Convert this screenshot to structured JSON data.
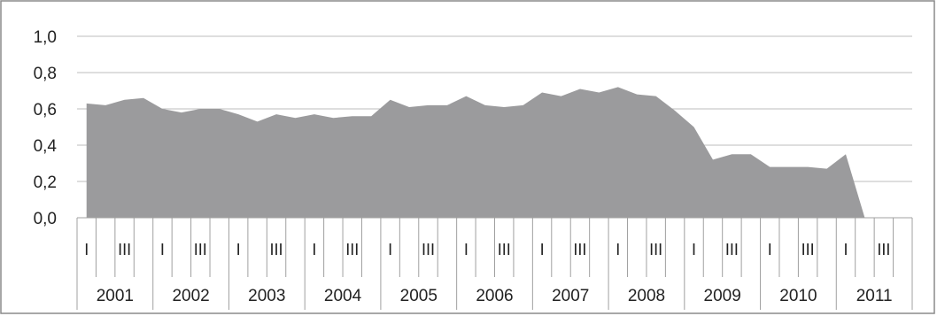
{
  "chart_data": {
    "type": "area",
    "title": "",
    "xlabel": "",
    "ylabel": "",
    "ylim": [
      0,
      1.0
    ],
    "y_ticks": [
      "0,0",
      "0,2",
      "0,4",
      "0,6",
      "0,8",
      "1,0"
    ],
    "y_tick_values": [
      0,
      0.2,
      0.4,
      0.6,
      0.8,
      1.0
    ],
    "grid": true,
    "legend": "none",
    "area_color": "#9b9b9d",
    "years": [
      "2001",
      "2002",
      "2003",
      "2004",
      "2005",
      "2006",
      "2007",
      "2008",
      "2009",
      "2010",
      "2011"
    ],
    "quarter_labels": [
      "I",
      "",
      "III",
      ""
    ],
    "x": [
      "2001 Q1",
      "2001 Q2",
      "2001 Q3",
      "2001 Q4",
      "2002 Q1",
      "2002 Q2",
      "2002 Q3",
      "2002 Q4",
      "2003 Q1",
      "2003 Q2",
      "2003 Q3",
      "2003 Q4",
      "2004 Q1",
      "2004 Q2",
      "2004 Q3",
      "2004 Q4",
      "2005 Q1",
      "2005 Q2",
      "2005 Q3",
      "2005 Q4",
      "2006 Q1",
      "2006 Q2",
      "2006 Q3",
      "2006 Q4",
      "2007 Q1",
      "2007 Q2",
      "2007 Q3",
      "2007 Q4",
      "2008 Q1",
      "2008 Q2",
      "2008 Q3",
      "2008 Q4",
      "2009 Q1",
      "2009 Q2",
      "2009 Q3",
      "2009 Q4",
      "2010 Q1",
      "2010 Q2",
      "2010 Q3",
      "2010 Q4",
      "2011 Q1",
      "2011 Q2"
    ],
    "values": [
      0.63,
      0.62,
      0.65,
      0.66,
      0.6,
      0.58,
      0.6,
      0.6,
      0.57,
      0.53,
      0.57,
      0.55,
      0.57,
      0.55,
      0.56,
      0.56,
      0.65,
      0.61,
      0.62,
      0.62,
      0.67,
      0.62,
      0.61,
      0.62,
      0.69,
      0.67,
      0.71,
      0.69,
      0.72,
      0.68,
      0.67,
      0.59,
      0.5,
      0.32,
      0.35,
      0.35,
      0.28,
      0.28,
      0.28,
      0.27,
      0.35,
      0.0
    ]
  }
}
